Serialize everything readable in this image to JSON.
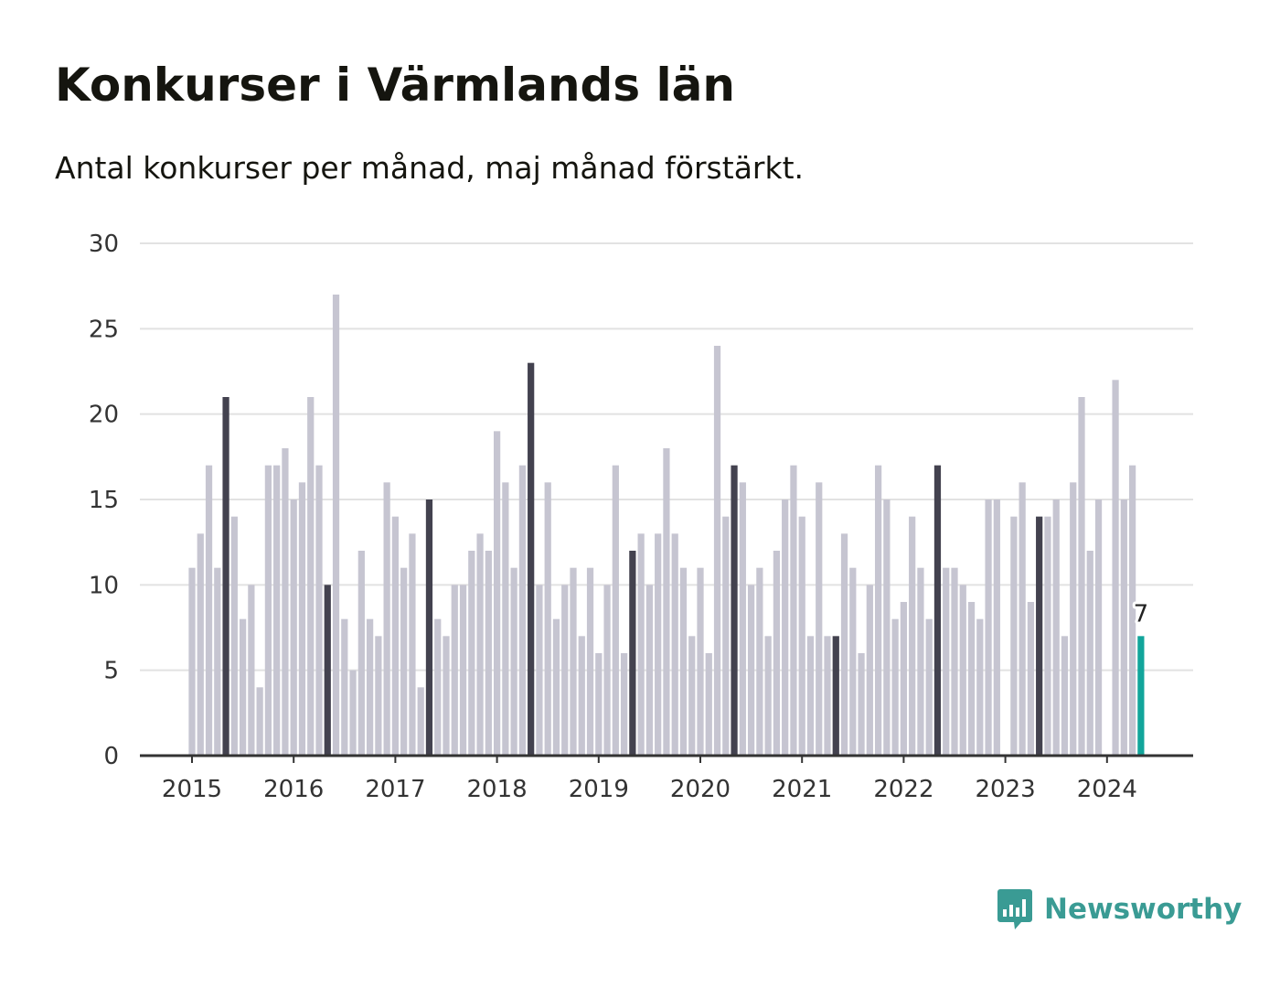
{
  "header": {
    "title": "Konkurser i Värmlands län",
    "subtitle": "Antal konkurser per månad, maj månad förstärkt."
  },
  "brand": {
    "name": "Newsworthy",
    "logo_icon": "bar-chart-speech-bubble-icon",
    "color": "#3a9b94"
  },
  "colors": {
    "bar_default": "#c6c5d1",
    "bar_highlight_may": "#43424f",
    "bar_latest": "#12a59b",
    "grid": "#e2e2e2",
    "axis": "#333333"
  },
  "chart_data": {
    "type": "bar",
    "title": "Konkurser i Värmlands län",
    "subtitle": "Antal konkurser per månad, maj månad förstärkt.",
    "xlabel": "",
    "ylabel": "",
    "ylim": [
      0,
      30
    ],
    "yticks": [
      0,
      5,
      10,
      15,
      20,
      25,
      30
    ],
    "x_tick_labels": [
      "2015",
      "2016",
      "2017",
      "2018",
      "2019",
      "2020",
      "2021",
      "2022",
      "2023",
      "2024"
    ],
    "grid": true,
    "start": "2015-01",
    "end": "2024-05",
    "highlight_month": "maj",
    "latest_label": "7",
    "values": [
      11,
      13,
      17,
      11,
      21,
      14,
      8,
      10,
      4,
      17,
      17,
      18,
      15,
      16,
      21,
      17,
      10,
      27,
      8,
      5,
      12,
      8,
      7,
      16,
      14,
      11,
      13,
      4,
      15,
      8,
      7,
      10,
      10,
      12,
      13,
      12,
      19,
      16,
      11,
      17,
      23,
      10,
      16,
      8,
      10,
      11,
      7,
      11,
      6,
      10,
      17,
      6,
      12,
      13,
      10,
      13,
      18,
      13,
      11,
      7,
      11,
      6,
      24,
      14,
      17,
      16,
      10,
      11,
      7,
      12,
      15,
      17,
      14,
      7,
      16,
      7,
      7,
      13,
      11,
      6,
      10,
      17,
      15,
      8,
      9,
      14,
      11,
      8,
      17,
      11,
      11,
      10,
      9,
      8,
      15,
      15,
      0,
      14,
      16,
      9,
      14,
      14,
      15,
      7,
      16,
      21,
      12,
      15,
      0,
      22,
      15,
      17,
      7
    ]
  }
}
